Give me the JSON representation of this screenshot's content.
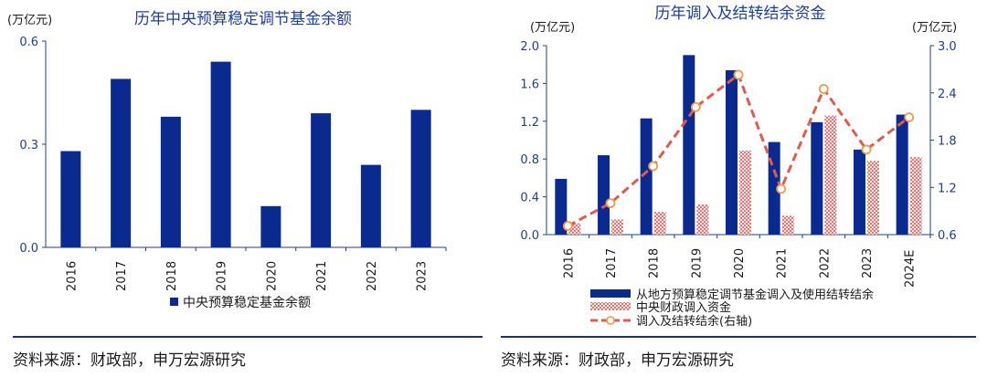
{
  "colors": {
    "bar_navy": "#0b2a8f",
    "hatch_red": "#e07a7a",
    "line_red": "#e05a4e",
    "marker_orange": "#f2994a",
    "title_blue": "#1f3fa0",
    "rule_navy": "#1f2f7a"
  },
  "left_source": "资料来源：财政部，申万宏源研究",
  "right_source": "资料来源：财政部，申万宏源研究",
  "chart_data": [
    {
      "type": "bar",
      "title": "历年中央预算稳定调节基金余额",
      "unit_label": "(万亿元)",
      "categories": [
        "2016",
        "2017",
        "2018",
        "2019",
        "2020",
        "2021",
        "2022",
        "2023"
      ],
      "series": [
        {
          "name": "中央预算稳定基金余额",
          "values": [
            0.28,
            0.49,
            0.38,
            0.54,
            0.12,
            0.39,
            0.24,
            0.4
          ]
        }
      ],
      "ylim": [
        0,
        0.6
      ],
      "yticks": [
        "0.0",
        "0.3",
        "0.6"
      ],
      "legend": "bottom"
    },
    {
      "type": "bar",
      "title": "历年调入及结转结余资金",
      "left_unit_label": "(万亿元)",
      "right_unit_label": "(万亿元)",
      "categories": [
        "2016",
        "2017",
        "2018",
        "2019",
        "2020",
        "2021",
        "2022",
        "2023",
        "2024E"
      ],
      "series": [
        {
          "name": "从地方预算稳定调节基金调入及使用结转结余",
          "type": "bar",
          "axis": "left",
          "values": [
            0.59,
            0.84,
            1.23,
            1.9,
            1.74,
            0.98,
            1.19,
            0.9,
            1.27
          ]
        },
        {
          "name": "中央财政调入资金",
          "type": "bar-hatched",
          "axis": "left",
          "values": [
            0.12,
            0.16,
            0.24,
            0.32,
            0.89,
            0.2,
            1.26,
            0.78,
            0.82
          ]
        },
        {
          "name": "调入及结转结余(右轴)",
          "type": "line",
          "axis": "right",
          "values": [
            0.71,
            1.0,
            1.47,
            2.22,
            2.63,
            1.18,
            2.45,
            1.68,
            2.09
          ]
        }
      ],
      "ylim_left": [
        0,
        2.0
      ],
      "yticks_left": [
        "0.0",
        "0.4",
        "0.8",
        "1.2",
        "1.6",
        "2.0"
      ],
      "ylim_right": [
        0.6,
        3.0
      ],
      "yticks_right": [
        "0.6",
        "1.2",
        "1.8",
        "2.4",
        "3.0"
      ],
      "legend": "bottom"
    }
  ]
}
